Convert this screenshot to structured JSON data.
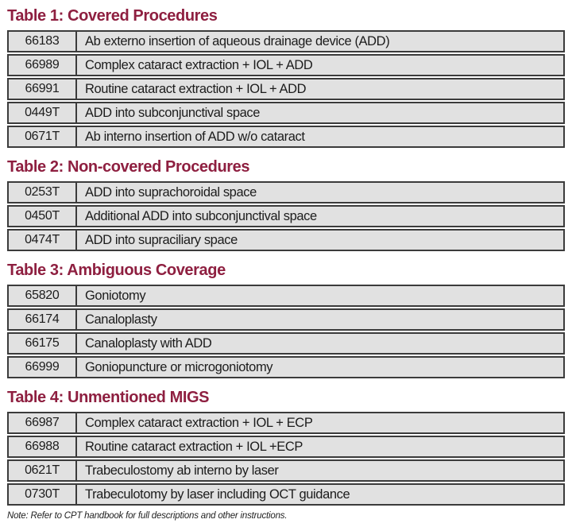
{
  "colors": {
    "heading": "#8e1f40",
    "row_background": "#e1e1e1",
    "border": "#3b3b3b",
    "text": "#1c1c1c",
    "page_background": "#ffffff"
  },
  "tables": [
    {
      "title": "Table 1: Covered Procedures",
      "rows": [
        {
          "code": "66183",
          "description": "Ab externo insertion of aqueous drainage device (ADD)"
        },
        {
          "code": "66989",
          "description": "Complex cataract extraction + IOL + ADD"
        },
        {
          "code": "66991",
          "description": "Routine cataract extraction + IOL + ADD"
        },
        {
          "code": "0449T",
          "description": "ADD into subconjunctival space"
        },
        {
          "code": "0671T",
          "description": "Ab interno insertion of ADD w/o cataract"
        }
      ]
    },
    {
      "title": "Table 2: Non-covered Procedures",
      "rows": [
        {
          "code": "0253T",
          "description": "ADD into suprachoroidal space"
        },
        {
          "code": "0450T",
          "description": "Additional ADD into subconjunctival space"
        },
        {
          "code": "0474T",
          "description": "ADD into supraciliary space"
        }
      ]
    },
    {
      "title": "Table 3: Ambiguous Coverage",
      "rows": [
        {
          "code": "65820",
          "description": "Goniotomy"
        },
        {
          "code": "66174",
          "description": "Canaloplasty"
        },
        {
          "code": "66175",
          "description": "Canaloplasty with ADD"
        },
        {
          "code": "66999",
          "description": "Goniopuncture or microgoniotomy"
        }
      ]
    },
    {
      "title": "Table 4: Unmentioned MIGS",
      "rows": [
        {
          "code": "66987",
          "description": "Complex cataract extraction + IOL + ECP"
        },
        {
          "code": "66988",
          "description": "Routine cataract extraction + IOL +ECP"
        },
        {
          "code": "0621T",
          "description": "Trabeculostomy ab interno by laser"
        },
        {
          "code": "0730T",
          "description": "Trabeculotomy by laser including OCT guidance"
        }
      ]
    }
  ],
  "note": "Note: Refer to CPT handbook for full descriptions and other instructions."
}
